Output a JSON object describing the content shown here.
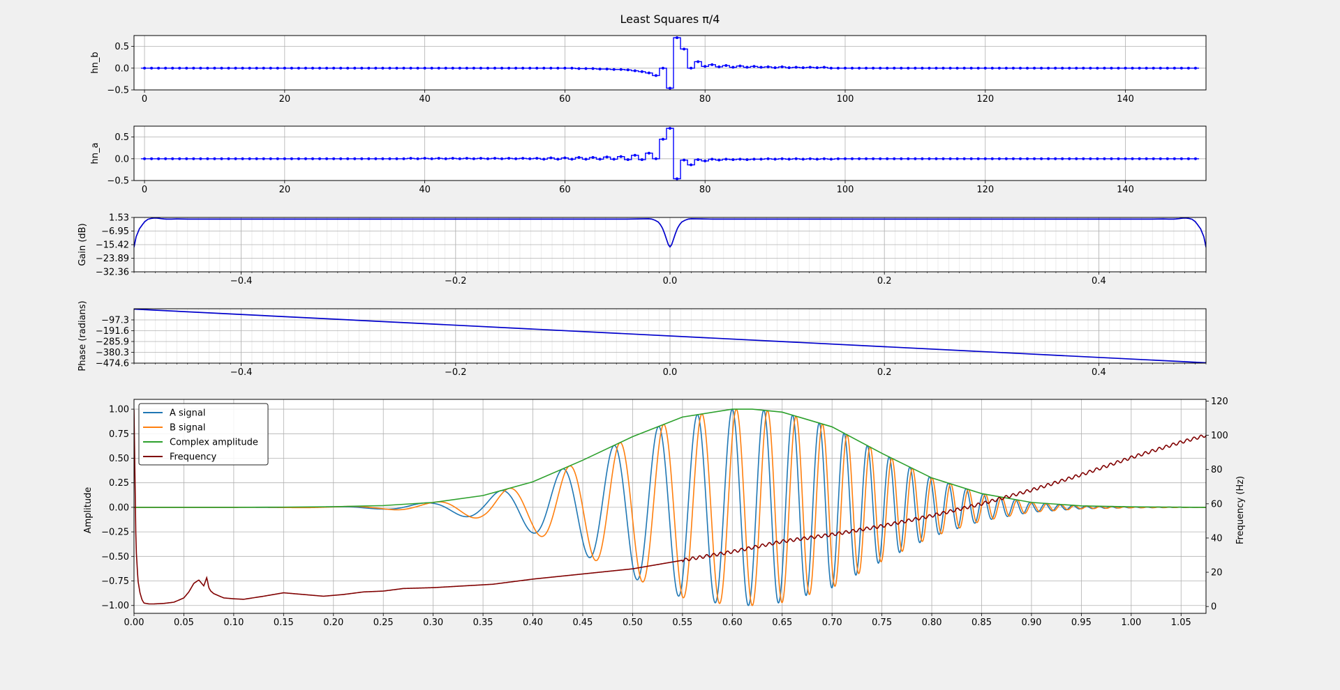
{
  "figure": {
    "title": "Least Squares π/4"
  },
  "chart_data": [
    {
      "type": "line",
      "name": "hn_b",
      "ylabel": "hn_b",
      "xlim": [
        -1.5,
        151.5
      ],
      "ylim": [
        -0.5,
        0.75
      ],
      "xticks": [
        0,
        20,
        40,
        60,
        80,
        100,
        120,
        140
      ],
      "yticks": [
        -0.5,
        0.0,
        0.5
      ],
      "ytick_labels": [
        "−0.5",
        "0.0",
        "0.5"
      ],
      "grid": true,
      "step": true,
      "color": "#0000ff",
      "n": 151,
      "nonzero": [
        [
          62,
          -0.01
        ],
        [
          63,
          -0.01
        ],
        [
          64,
          -0.01
        ],
        [
          65,
          -0.02
        ],
        [
          66,
          -0.02
        ],
        [
          67,
          -0.03
        ],
        [
          68,
          -0.03
        ],
        [
          69,
          -0.04
        ],
        [
          70,
          -0.06
        ],
        [
          71,
          -0.08
        ],
        [
          72,
          -0.11
        ],
        [
          73,
          -0.17
        ],
        [
          74,
          0.0
        ],
        [
          75,
          -0.46
        ],
        [
          76,
          0.7
        ],
        [
          77,
          0.44
        ],
        [
          78,
          0.0
        ],
        [
          79,
          0.15
        ],
        [
          80,
          0.04
        ],
        [
          81,
          0.08
        ],
        [
          82,
          0.03
        ],
        [
          83,
          0.06
        ],
        [
          84,
          0.02
        ],
        [
          85,
          0.05
        ],
        [
          86,
          0.02
        ],
        [
          87,
          0.04
        ],
        [
          88,
          0.02
        ],
        [
          89,
          0.03
        ],
        [
          90,
          0.01
        ],
        [
          91,
          0.03
        ],
        [
          92,
          0.01
        ],
        [
          93,
          0.02
        ],
        [
          94,
          0.01
        ],
        [
          95,
          0.02
        ],
        [
          96,
          0.01
        ],
        [
          97,
          0.02
        ]
      ]
    },
    {
      "type": "line",
      "name": "hn_a",
      "ylabel": "hn_a",
      "xlim": [
        -1.5,
        151.5
      ],
      "ylim": [
        -0.5,
        0.75
      ],
      "xticks": [
        0,
        20,
        40,
        60,
        80,
        100,
        120,
        140
      ],
      "yticks": [
        -0.5,
        0.0,
        0.5
      ],
      "ytick_labels": [
        "−0.5",
        "0.0",
        "0.5"
      ],
      "grid": true,
      "step": true,
      "color": "#0000ff",
      "n": 151,
      "nonzero": [
        [
          38,
          0.01
        ],
        [
          40,
          0.01
        ],
        [
          42,
          0.01
        ],
        [
          44,
          0.01
        ],
        [
          46,
          0.01
        ],
        [
          48,
          0.01
        ],
        [
          50,
          0.01
        ],
        [
          52,
          0.01
        ],
        [
          54,
          0.01
        ],
        [
          56,
          0.01
        ],
        [
          57,
          -0.01
        ],
        [
          58,
          0.02
        ],
        [
          59,
          -0.01
        ],
        [
          60,
          0.02
        ],
        [
          61,
          -0.01
        ],
        [
          62,
          0.03
        ],
        [
          63,
          -0.01
        ],
        [
          64,
          0.03
        ],
        [
          65,
          -0.01
        ],
        [
          66,
          0.04
        ],
        [
          67,
          -0.01
        ],
        [
          68,
          0.05
        ],
        [
          69,
          -0.02
        ],
        [
          70,
          0.08
        ],
        [
          71,
          -0.02
        ],
        [
          72,
          0.13
        ],
        [
          73,
          0.0
        ],
        [
          74,
          0.45
        ],
        [
          75,
          0.7
        ],
        [
          76,
          -0.46
        ],
        [
          77,
          -0.03
        ],
        [
          78,
          -0.14
        ],
        [
          79,
          -0.02
        ],
        [
          80,
          -0.05
        ],
        [
          81,
          -0.01
        ],
        [
          82,
          -0.03
        ],
        [
          83,
          -0.01
        ],
        [
          84,
          -0.02
        ],
        [
          85,
          -0.01
        ],
        [
          86,
          -0.02
        ],
        [
          87,
          -0.01
        ],
        [
          88,
          -0.01
        ],
        [
          90,
          -0.01
        ],
        [
          92,
          -0.01
        ],
        [
          94,
          -0.01
        ],
        [
          96,
          -0.01
        ],
        [
          98,
          -0.01
        ]
      ]
    },
    {
      "type": "line",
      "name": "gain",
      "ylabel": "Gain (dB)",
      "xlim": [
        -0.5,
        0.5
      ],
      "ylim": [
        -32.36,
        1.53
      ],
      "xticks": [
        -0.4,
        -0.2,
        0.0,
        0.2,
        0.4
      ],
      "xtick_labels": [
        "−0.4",
        "−0.2",
        "0.0",
        "0.2",
        "0.4"
      ],
      "yticks": [
        1.53,
        -6.95,
        -15.42,
        -23.89,
        -32.36
      ],
      "ytick_labels": [
        "1.53",
        "−6.95",
        "−15.42",
        "−23.89",
        "−32.36"
      ],
      "minor_x_step": 0.01,
      "grid": true,
      "color": "#0000cc",
      "x": [
        -0.5,
        -0.498,
        -0.495,
        -0.492,
        -0.49,
        -0.487,
        -0.484,
        -0.481,
        -0.478,
        -0.475,
        -0.472,
        -0.47,
        -0.465,
        -0.46,
        -0.45,
        -0.4,
        -0.3,
        -0.2,
        -0.1,
        -0.04,
        -0.03,
        -0.02,
        -0.017,
        -0.014,
        -0.011,
        -0.009,
        -0.007,
        -0.005,
        -0.003,
        -0.0015,
        0.0,
        0.0015,
        0.003,
        0.005,
        0.007,
        0.009,
        0.011,
        0.014,
        0.017,
        0.02,
        0.03,
        0.04,
        0.1,
        0.2,
        0.3,
        0.4,
        0.45,
        0.46,
        0.465,
        0.47,
        0.472,
        0.475,
        0.478,
        0.481,
        0.484,
        0.487,
        0.49,
        0.492,
        0.495,
        0.498,
        0.5
      ],
      "y": [
        -17.0,
        -10.5,
        -5.6,
        -2.8,
        -1.1,
        0.4,
        0.9,
        1.2,
        1.1,
        0.8,
        0.6,
        0.5,
        0.5,
        0.6,
        0.5,
        0.5,
        0.5,
        0.5,
        0.5,
        0.5,
        0.6,
        0.7,
        0.5,
        -0.2,
        -1.3,
        -2.9,
        -5.2,
        -8.6,
        -12.6,
        -15.5,
        -16.8,
        -15.5,
        -12.6,
        -8.6,
        -5.2,
        -2.9,
        -1.3,
        -0.2,
        0.5,
        0.7,
        0.6,
        0.5,
        0.5,
        0.5,
        0.5,
        0.5,
        0.5,
        0.6,
        0.5,
        0.5,
        0.6,
        0.8,
        1.1,
        1.2,
        0.9,
        0.4,
        -1.1,
        -2.8,
        -5.6,
        -10.5,
        -17.0
      ]
    },
    {
      "type": "line",
      "name": "phase",
      "ylabel": "Phase (radians)",
      "xlim": [
        -0.5,
        0.5
      ],
      "ylim": [
        -474.6,
        0
      ],
      "xticks": [
        -0.4,
        -0.2,
        0.0,
        0.2,
        0.4
      ],
      "xtick_labels": [
        "−0.4",
        "−0.2",
        "0.0",
        "0.2",
        "0.4"
      ],
      "yticks": [
        -97.3,
        -191.6,
        -285.9,
        -380.3,
        -474.6
      ],
      "ytick_labels": [
        "−97.3",
        "−191.6",
        "−285.9",
        "−380.3",
        "−474.6"
      ],
      "minor_x_step": 0.01,
      "grid": true,
      "color": "#0000cc",
      "x": [
        -0.5,
        0.5
      ],
      "y": [
        -3.0,
        -471.7
      ]
    },
    {
      "type": "line",
      "name": "signals",
      "ylabel": "Amplitude",
      "y2label": "Frequency (Hz)",
      "xlim": [
        0.0,
        1.075
      ],
      "ylim": [
        -1.08,
        1.1
      ],
      "y2lim": [
        -4.0,
        121.0
      ],
      "xticks": [
        0.0,
        0.05,
        0.1,
        0.15,
        0.2,
        0.25,
        0.3,
        0.35,
        0.4,
        0.45,
        0.5,
        0.55,
        0.6,
        0.65,
        0.7,
        0.75,
        0.8,
        0.85,
        0.9,
        0.95,
        1.0,
        1.05
      ],
      "xtick_labels": [
        "0.00",
        "0.05",
        "0.10",
        "0.15",
        "0.20",
        "0.25",
        "0.30",
        "0.35",
        "0.40",
        "0.45",
        "0.50",
        "0.55",
        "0.60",
        "0.65",
        "0.70",
        "0.75",
        "0.80",
        "0.85",
        "0.90",
        "0.95",
        "1.00",
        "1.05"
      ],
      "yticks": [
        -1.0,
        -0.75,
        -0.5,
        -0.25,
        0.0,
        0.25,
        0.5,
        0.75,
        1.0
      ],
      "ytick_labels": [
        "−1.00",
        "−0.75",
        "−0.50",
        "−0.25",
        "0.00",
        "0.25",
        "0.50",
        "0.75",
        "1.00"
      ],
      "y2ticks": [
        0,
        20,
        40,
        60,
        80,
        100,
        120
      ],
      "y2tick_labels": [
        "0",
        "20",
        "40",
        "60",
        "80",
        "100",
        "120"
      ],
      "grid": true,
      "legend_position": "upper-left",
      "envelope": {
        "x": [
          0.0,
          0.1,
          0.15,
          0.2,
          0.25,
          0.3,
          0.35,
          0.4,
          0.45,
          0.5,
          0.55,
          0.6,
          0.62,
          0.65,
          0.7,
          0.75,
          0.8,
          0.85,
          0.9,
          0.95,
          1.0,
          1.075
        ],
        "y": [
          0.0,
          0.0,
          0.002,
          0.006,
          0.018,
          0.05,
          0.12,
          0.26,
          0.48,
          0.72,
          0.92,
          1.0,
          1.0,
          0.97,
          0.82,
          0.55,
          0.3,
          0.14,
          0.05,
          0.015,
          0.005,
          0.0
        ]
      },
      "chirp": {
        "f0": 10,
        "f1": 100,
        "phase_lag_rad": 0.785398,
        "t": [
          0.0,
          0.1,
          0.2,
          0.3,
          0.4,
          0.5,
          0.6,
          0.7,
          0.8,
          0.9,
          1.0,
          1.075
        ],
        "f": [
          10,
          10,
          10,
          12,
          16,
          22,
          30,
          40,
          52,
          67,
          85,
          100
        ]
      },
      "series": [
        {
          "name": "A signal",
          "color": "#1f77b4"
        },
        {
          "name": "B signal",
          "color": "#ff7f0e"
        },
        {
          "name": "Complex amplitude",
          "color": "#2ca02c"
        },
        {
          "name": "Frequency",
          "color": "#800000",
          "axis": "right",
          "x": [
            0.0,
            0.002,
            0.004,
            0.006,
            0.008,
            0.01,
            0.015,
            0.02,
            0.03,
            0.04,
            0.05,
            0.055,
            0.06,
            0.065,
            0.07,
            0.073,
            0.075,
            0.077,
            0.08,
            0.09,
            0.1,
            0.11,
            0.13,
            0.15,
            0.17,
            0.19,
            0.21,
            0.23,
            0.25,
            0.27,
            0.3,
            0.33,
            0.36,
            0.4,
            0.45,
            0.5,
            0.55,
            0.6,
            0.65,
            0.7,
            0.75,
            0.8,
            0.85,
            0.9,
            0.95,
            1.0,
            1.05,
            1.075
          ],
          "y": [
            115.0,
            35.0,
            15.0,
            8.0,
            4.0,
            2.0,
            1.5,
            1.5,
            1.8,
            2.5,
            5.0,
            8.5,
            13.5,
            15.5,
            12.0,
            17.0,
            11.0,
            9.0,
            7.5,
            5.0,
            4.5,
            4.2,
            6.0,
            8.0,
            7.0,
            6.0,
            7.0,
            8.5,
            9.0,
            10.5,
            11.0,
            12.0,
            13.0,
            16.0,
            19.0,
            22.0,
            27.0,
            32.0,
            38.0,
            42.0,
            47.0,
            53.0,
            60.0,
            68.0,
            77.0,
            87.0,
            96.0,
            100.0
          ]
        }
      ]
    }
  ]
}
